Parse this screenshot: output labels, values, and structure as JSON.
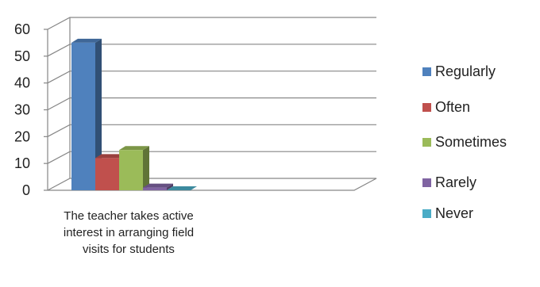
{
  "chart_data": {
    "type": "bar",
    "categories": [
      "The teacher takes active interest in arranging field visits for students"
    ],
    "series": [
      {
        "name": "Regularly",
        "color": "#4F81BD",
        "values": [
          55
        ]
      },
      {
        "name": "Often",
        "color": "#C0504D",
        "values": [
          12
        ]
      },
      {
        "name": "Sometimes",
        "color": "#9BBB59",
        "values": [
          15
        ]
      },
      {
        "name": "Rarely",
        "color": "#8064A2",
        "values": [
          1
        ]
      },
      {
        "name": "Never",
        "color": "#4BACC6",
        "values": [
          0
        ]
      }
    ],
    "ylim": [
      0,
      60
    ],
    "yticks": [
      "0",
      "10",
      "20",
      "30",
      "40",
      "50",
      "60"
    ],
    "grid": true,
    "legend_position": "right",
    "style": "3d-clustered-column"
  }
}
